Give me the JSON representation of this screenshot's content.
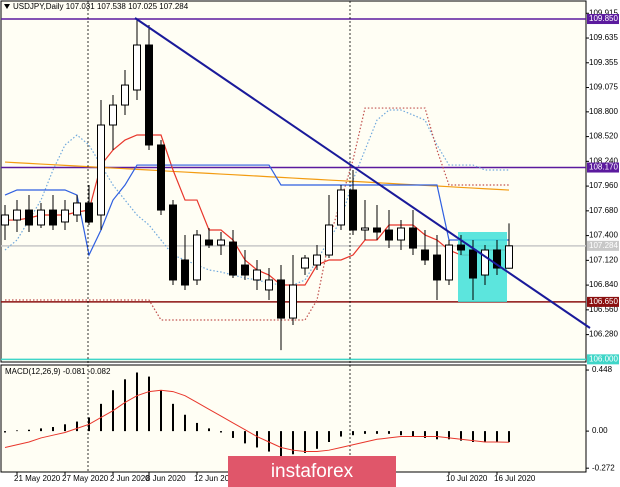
{
  "chart_data": [
    {
      "type": "candlestick",
      "symbol": "USDJPY,Daily",
      "categories": [
        null,
        "21 May 2020",
        null,
        null,
        null,
        "27 May 2020",
        null,
        null,
        null,
        "2 Jun 2020",
        null,
        null,
        "8 Jun 2020",
        null,
        null,
        null,
        "12 Jun 2020",
        null,
        null,
        null,
        null,
        null,
        null,
        null,
        null,
        null,
        null,
        null,
        null,
        null,
        null,
        null,
        null,
        null,
        null,
        null,
        null,
        "10 Jul 2020",
        null,
        null,
        null,
        "16 Jul 2020",
        null
      ],
      "open": [
        107.52,
        107.576,
        107.689,
        107.52,
        107.689,
        107.554,
        107.633,
        107.769,
        107.633,
        108.651,
        108.877,
        109.047,
        109.556,
        108.425,
        107.746,
        107.124,
        106.898,
        107.35,
        107.293,
        107.327,
        107.067,
        106.898,
        106.785,
        106.898,
        106.467,
        107.033,
        107.067,
        107.18,
        107.52,
        107.916,
        107.463,
        107.486,
        107.463,
        107.35,
        107.486,
        107.237,
        107.18,
        106.898,
        107.293,
        107.237,
        106.954,
        107.237,
        107.031
      ],
      "high": [
        107.746,
        107.802,
        107.859,
        107.769,
        107.859,
        107.802,
        107.859,
        107.972,
        108.934,
        108.99,
        109.273,
        109.839,
        109.782,
        108.481,
        107.802,
        107.407,
        107.463,
        107.486,
        107.44,
        107.463,
        107.237,
        107.124,
        107.033,
        107.067,
        107.18,
        107.18,
        107.293,
        107.859,
        107.972,
        108.142,
        107.802,
        107.746,
        107.689,
        107.576,
        107.689,
        107.463,
        107.407,
        107.35,
        107.407,
        107.35,
        107.293,
        107.35,
        107.538
      ],
      "low": [
        107.35,
        107.44,
        107.44,
        107.486,
        107.463,
        107.463,
        107.554,
        107.52,
        107.463,
        108.368,
        108.764,
        108.934,
        108.368,
        107.633,
        106.841,
        106.784,
        106.841,
        107.259,
        107.18,
        106.92,
        106.898,
        106.785,
        106.671,
        106.105,
        106.388,
        106.954,
        107.011,
        107.146,
        107.463,
        107.407,
        107.35,
        107.35,
        107.259,
        107.237,
        107.18,
        107.067,
        106.671,
        106.841,
        107.18,
        106.671,
        106.841,
        106.954,
        107.025
      ],
      "close": [
        107.633,
        107.689,
        107.52,
        107.689,
        107.52,
        107.689,
        107.769,
        107.554,
        108.651,
        108.877,
        109.103,
        109.556,
        108.425,
        107.689,
        106.898,
        106.841,
        107.407,
        107.293,
        107.35,
        106.954,
        106.954,
        107.011,
        106.898,
        106.467,
        106.841,
        107.146,
        107.18,
        107.52,
        107.916,
        107.463,
        107.486,
        107.44,
        107.35,
        107.486,
        107.259,
        107.124,
        106.898,
        107.293,
        107.237,
        106.92,
        107.237,
        107.033,
        107.284
      ],
      "lines": [
        {
          "color": "#6fa8dc",
          "style": "dotted",
          "values": [
            107.237,
            107.35,
            107.576,
            107.802,
            108.142,
            108.425,
            108.538,
            108.425,
            108.198,
            107.972,
            107.802,
            107.633,
            107.52,
            107.35,
            107.18,
            107.124,
            107.067,
            107.011,
            106.988,
            106.954,
            106.92,
            106.898,
            106.864,
            106.841,
            106.841,
            106.898,
            107.124,
            107.35,
            107.576,
            108.029,
            108.368,
            108.707,
            108.821,
            108.821,
            108.764,
            108.707,
            108.425,
            108.198,
            108.198,
            108.198,
            108.142,
            108.142,
            108.142
          ]
        },
        {
          "color": "#c0504d",
          "style": "dotted",
          "values": [
            106.671,
            106.671,
            106.671,
            106.671,
            106.671,
            106.671,
            106.671,
            106.671,
            106.671,
            106.671,
            106.671,
            106.671,
            106.671,
            106.445,
            106.445,
            106.445,
            106.445,
            106.445,
            106.445,
            106.445,
            106.445,
            106.445,
            106.445,
            106.445,
            106.445,
            106.445,
            106.671,
            107.35,
            107.802,
            108.255,
            108.843,
            108.843,
            108.843,
            108.843,
            108.843,
            108.843,
            108.368,
            107.972,
            107.972,
            107.972,
            107.972,
            107.972,
            107.972
          ]
        },
        {
          "color": "#f39c12",
          "style": "solid",
          "values": [
            108.232,
            108.224,
            108.217,
            108.209,
            108.202,
            108.194,
            108.187,
            108.179,
            108.172,
            108.164,
            108.157,
            108.149,
            108.142,
            108.134,
            108.126,
            108.119,
            108.111,
            108.104,
            108.096,
            108.089,
            108.081,
            108.074,
            108.066,
            108.059,
            108.051,
            108.043,
            108.036,
            108.028,
            108.021,
            108.013,
            108.006,
            107.998,
            107.991,
            107.983,
            107.976,
            107.968,
            107.961,
            107.953,
            107.945,
            107.938,
            107.93,
            107.923,
            107.915
          ]
        },
        {
          "color": "#e8362b",
          "style": "solid",
          "values": [
            107.576,
            107.576,
            107.599,
            107.633,
            107.633,
            107.633,
            107.667,
            107.689,
            108.198,
            108.368,
            108.481,
            108.538,
            108.538,
            108.538,
            108.142,
            107.802,
            107.802,
            107.463,
            107.463,
            107.35,
            107.124,
            107.011,
            106.954,
            106.841,
            106.841,
            106.841,
            107.067,
            107.124,
            107.124,
            107.18,
            107.35,
            107.35,
            107.52,
            107.52,
            107.52,
            107.407,
            107.35,
            107.237,
            107.18,
            107.18,
            107.237,
            107.237,
            107.237
          ]
        },
        {
          "color": "#2f5fe0",
          "style": "solid",
          "values": [
            107.859,
            107.916,
            107.916,
            107.916,
            107.916,
            107.916,
            107.859,
            107.18,
            107.463,
            107.802,
            107.972,
            108.198,
            108.198,
            108.198,
            108.198,
            108.198,
            108.198,
            108.198,
            108.198,
            108.198,
            108.198,
            108.198,
            108.198,
            107.972,
            107.972,
            107.972,
            107.972,
            107.972,
            107.972,
            107.972,
            107.972,
            107.972,
            107.972,
            107.972,
            107.972,
            107.972,
            107.972,
            107.35,
            107.35,
            107.35,
            107.35,
            107.35,
            107.35
          ]
        }
      ],
      "levels": [
        {
          "value": 109.85,
          "label": "109.850",
          "color": "#5b1a9e"
        },
        {
          "value": 108.17,
          "label": "108.170",
          "color": "#5b1a9e"
        },
        {
          "value": 107.284,
          "label": "107.284",
          "color": "#c8c8c8"
        },
        {
          "value": 106.65,
          "label": "106.650",
          "color": "#8b1010"
        },
        {
          "value": 106.0,
          "label": "106.000",
          "color": "#3fd6c8"
        }
      ],
      "ylim": [
        105.97,
        110.02
      ],
      "yticks": [
        109.915,
        109.635,
        109.355,
        109.075,
        {
          "value": 108.8,
          "label": "108.800"
        },
        {
          "value": 108.52,
          "label": "108.520"
        },
        {
          "value": 108.24,
          "label": "108.240"
        },
        {
          "value": 107.96,
          "label": "107.960"
        },
        {
          "value": 107.68,
          "label": "107.680"
        },
        {
          "value": 107.4,
          "label": "107.400"
        },
        {
          "value": 107.12,
          "label": "107.120"
        },
        {
          "value": 106.84,
          "label": "106.840"
        },
        {
          "value": 106.56,
          "label": "106.560"
        },
        {
          "value": 106.28,
          "label": "106.280"
        }
      ]
    },
    {
      "type": "macd",
      "title": "MACD(12,26,9)",
      "values": [
        -0.01,
        0.005,
        0.01,
        0.02,
        0.03,
        0.05,
        0.07,
        0.1,
        0.2,
        0.3,
        0.38,
        0.43,
        0.4,
        0.3,
        0.2,
        0.12,
        0.06,
        0.02,
        -0.01,
        -0.05,
        -0.09,
        -0.12,
        -0.15,
        -0.19,
        -0.17,
        -0.16,
        -0.13,
        -0.08,
        -0.04,
        -0.03,
        -0.02,
        -0.02,
        -0.02,
        -0.03,
        -0.04,
        -0.05,
        -0.06,
        -0.06,
        -0.07,
        -0.08,
        -0.08,
        -0.08,
        -0.081
      ],
      "color": "#000000",
      "signal": [
        -0.12,
        -0.1,
        -0.08,
        -0.05,
        -0.03,
        -0.01,
        0.02,
        0.05,
        0.1,
        0.15,
        0.21,
        0.26,
        0.29,
        0.3,
        0.29,
        0.26,
        0.21,
        0.16,
        0.11,
        0.06,
        0.01,
        -0.04,
        -0.08,
        -0.12,
        -0.14,
        -0.15,
        -0.15,
        -0.14,
        -0.12,
        -0.1,
        -0.08,
        -0.06,
        -0.05,
        -0.04,
        -0.04,
        -0.04,
        -0.04,
        -0.05,
        -0.06,
        -0.07,
        -0.08,
        -0.08,
        -0.082
      ],
      "signal_color": "#e8362b",
      "ylim": [
        -0.3,
        0.485
      ],
      "yticks": [
        0.448,
        {
          "value": 0,
          "label": "0.00"
        },
        -0.272
      ]
    }
  ],
  "watermark": "instaforex"
}
